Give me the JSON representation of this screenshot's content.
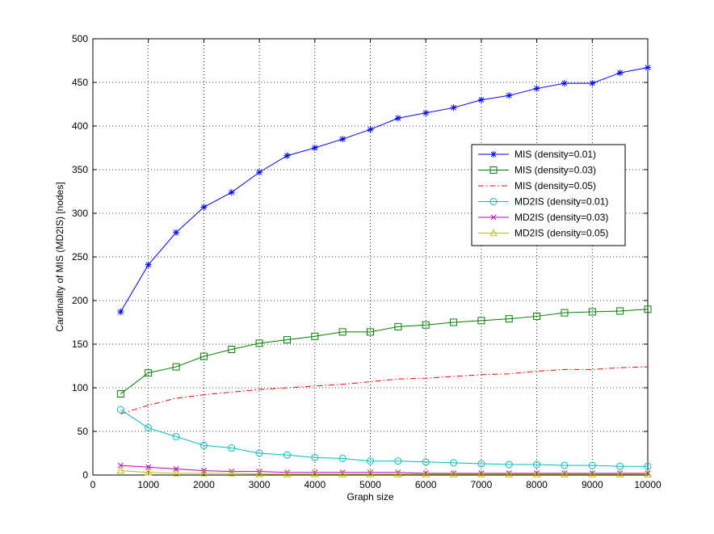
{
  "chart_data": {
    "type": "line",
    "title": "",
    "xlabel": "Graph size",
    "ylabel": "Cardinality of  MIS (MD2IS) [nodes]",
    "xlim": [
      0,
      10000
    ],
    "ylim": [
      0,
      500
    ],
    "xticks": [
      0,
      1000,
      2000,
      3000,
      4000,
      5000,
      6000,
      7000,
      8000,
      9000,
      10000
    ],
    "yticks": [
      0,
      50,
      100,
      150,
      200,
      250,
      300,
      350,
      400,
      450,
      500
    ],
    "grid": true,
    "legend_position": "right",
    "x": [
      500,
      1000,
      1500,
      2000,
      2500,
      3000,
      3500,
      4000,
      4500,
      5000,
      5500,
      6000,
      6500,
      7000,
      7500,
      8000,
      8500,
      9000,
      9500,
      10000
    ],
    "series": [
      {
        "name": "MIS (density=0.01)",
        "color": "#0000ff",
        "marker": "star",
        "dash": "solid",
        "values": [
          187,
          241,
          278,
          307,
          324,
          347,
          366,
          375,
          385,
          396,
          409,
          415,
          421,
          430,
          435,
          443,
          449,
          449,
          461,
          467
        ]
      },
      {
        "name": "MIS (density=0.03)",
        "color": "#008000",
        "marker": "square",
        "dash": "solid",
        "values": [
          93,
          117,
          124,
          136,
          144,
          151,
          155,
          159,
          164,
          164,
          170,
          172,
          175,
          177,
          179,
          182,
          186,
          187,
          188,
          190
        ]
      },
      {
        "name": "MIS (density=0.05)",
        "color": "#ff0000",
        "marker": "none",
        "dash": "dashdot",
        "values": [
          70,
          80,
          88,
          92,
          95,
          98,
          100,
          102,
          104,
          107,
          110,
          111,
          113,
          115,
          116,
          119,
          121,
          121,
          123,
          124
        ]
      },
      {
        "name": "MD2IS (density=0.01)",
        "color": "#00bfbf",
        "marker": "circle",
        "dash": "solid",
        "values": [
          75,
          54,
          44,
          34,
          31,
          25,
          23,
          20,
          19,
          16,
          16,
          15,
          14,
          13,
          12,
          12,
          11,
          11,
          10,
          10
        ]
      },
      {
        "name": "MD2IS (density=0.03)",
        "color": "#bf00bf",
        "marker": "x",
        "dash": "solid",
        "values": [
          11,
          9,
          7,
          5,
          4,
          4,
          3,
          3,
          3,
          3,
          3,
          2,
          2,
          2,
          2,
          2,
          2,
          2,
          2,
          2
        ]
      },
      {
        "name": "MD2IS (density=0.05)",
        "color": "#bfbf00",
        "marker": "triangle",
        "dash": "solid",
        "values": [
          5,
          3,
          2,
          2,
          2,
          1,
          1,
          1,
          1,
          1,
          1,
          1,
          1,
          1,
          1,
          1,
          1,
          1,
          1,
          1
        ]
      }
    ]
  }
}
